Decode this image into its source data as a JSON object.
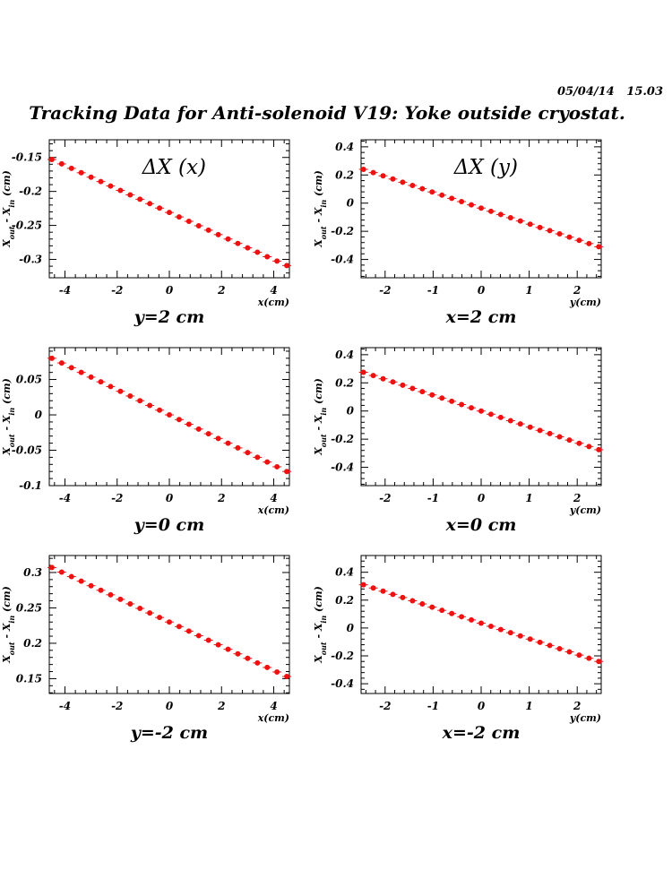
{
  "header": {
    "timestamp": "05/04/14   15.03",
    "title": "Tracking Data for Anti-solenoid V19: Yoke outside cryostat."
  },
  "colors": {
    "marker": "#ee1111",
    "axis": "#000000"
  },
  "chart_data": [
    {
      "type": "scatter",
      "title": "ΔX (x)",
      "caption": "y=2 cm",
      "xlabel": "x(cm)",
      "ylabel": "X_out - X_in (cm)",
      "xlim": [
        -4.6,
        4.6
      ],
      "ylim": [
        -0.327,
        -0.124
      ],
      "xticks": [
        -4,
        -2,
        0,
        2,
        4
      ],
      "yticks": [
        -0.15,
        -0.2,
        -0.25,
        -0.3
      ],
      "ytick_labels": [
        "-0.15",
        "-0.2",
        "-0.25",
        "-0.3"
      ],
      "x_range": [
        -4.5,
        4.5
      ],
      "y_range": [
        -0.153,
        -0.309
      ],
      "n_points": 25
    },
    {
      "type": "scatter",
      "title": "ΔX (y)",
      "caption": "x=2 cm",
      "xlabel": "y(cm)",
      "ylabel": "X_out - X_in (cm)",
      "xlim": [
        -2.5,
        2.5
      ],
      "ylim": [
        -0.53,
        0.45
      ],
      "xticks": [
        -2,
        -1,
        0,
        1,
        2
      ],
      "yticks": [
        0.4,
        0.2,
        0,
        -0.2,
        -0.4
      ],
      "ytick_labels": [
        "0.4",
        "0.2",
        "0",
        "-0.2",
        "-0.4"
      ],
      "x_range": [
        -2.45,
        2.45
      ],
      "y_range": [
        0.24,
        -0.31
      ],
      "n_points": 25
    },
    {
      "type": "scatter",
      "title": "",
      "caption": "y=0 cm",
      "xlabel": "x(cm)",
      "ylabel": "X_out - X_in (cm)",
      "xlim": [
        -4.6,
        4.6
      ],
      "ylim": [
        -0.1,
        0.095
      ],
      "xticks": [
        -4,
        -2,
        0,
        2,
        4
      ],
      "yticks": [
        0.05,
        0,
        -0.05,
        -0.1
      ],
      "ytick_labels": [
        "0.05",
        "0",
        "-0.05",
        "-0.1"
      ],
      "x_range": [
        -4.5,
        4.5
      ],
      "y_range": [
        0.08,
        -0.08
      ],
      "n_points": 25
    },
    {
      "type": "scatter",
      "title": "",
      "caption": "x=0 cm",
      "xlabel": "y(cm)",
      "ylabel": "X_out - X_in (cm)",
      "xlim": [
        -2.5,
        2.5
      ],
      "ylim": [
        -0.53,
        0.45
      ],
      "xticks": [
        -2,
        -1,
        0,
        1,
        2
      ],
      "yticks": [
        0.4,
        0.2,
        0,
        -0.2,
        -0.4
      ],
      "ytick_labels": [
        "0.4",
        "0.2",
        "0",
        "-0.2",
        "-0.4"
      ],
      "x_range": [
        -2.45,
        2.45
      ],
      "y_range": [
        0.275,
        -0.275
      ],
      "n_points": 25
    },
    {
      "type": "scatter",
      "title": "",
      "caption": "y=-2 cm",
      "xlabel": "x(cm)",
      "ylabel": "X_out - X_in (cm)",
      "xlim": [
        -4.6,
        4.6
      ],
      "ylim": [
        0.129,
        0.324
      ],
      "xticks": [
        -4,
        -2,
        0,
        2,
        4
      ],
      "yticks": [
        0.3,
        0.25,
        0.2,
        0.15
      ],
      "ytick_labels": [
        "0.3",
        "0.25",
        "0.2",
        "0.15"
      ],
      "x_range": [
        -4.5,
        4.5
      ],
      "y_range": [
        0.307,
        0.153
      ],
      "n_points": 25
    },
    {
      "type": "scatter",
      "title": "",
      "caption": "x=-2 cm",
      "xlabel": "y(cm)",
      "ylabel": "X_out - X_in (cm)",
      "xlim": [
        -2.5,
        2.5
      ],
      "ylim": [
        -0.47,
        0.52
      ],
      "xticks": [
        -2,
        -1,
        0,
        1,
        2
      ],
      "yticks": [
        0.4,
        0.2,
        0,
        -0.2,
        -0.4
      ],
      "ytick_labels": [
        "0.4",
        "0.2",
        "0",
        "-0.2",
        "-0.4"
      ],
      "x_range": [
        -2.45,
        2.45
      ],
      "y_range": [
        0.31,
        -0.24
      ],
      "n_points": 25
    }
  ]
}
